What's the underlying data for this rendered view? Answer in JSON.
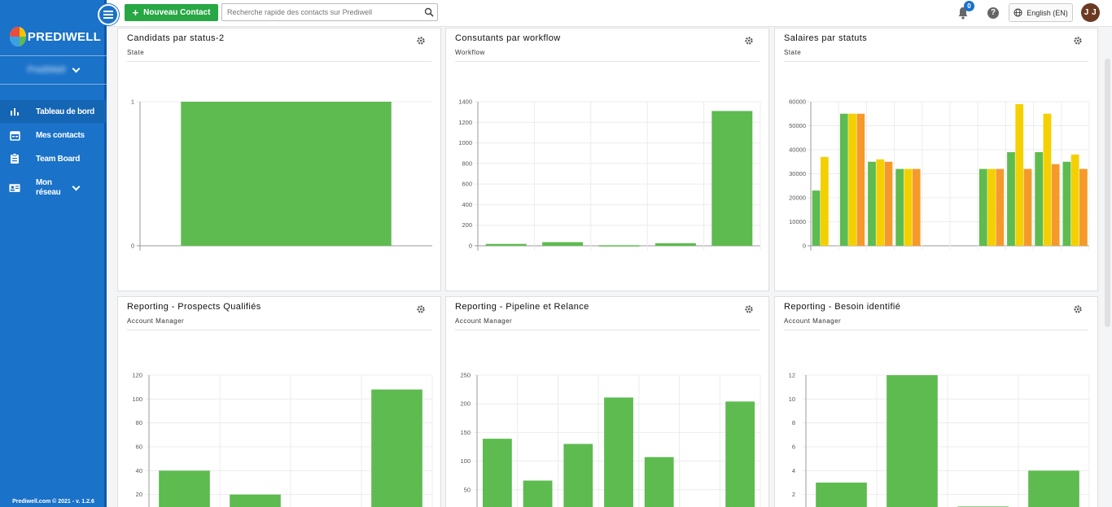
{
  "app": {
    "logo_text": "PREDIWELL",
    "footer": "Prediwell.com © 2021 - v. 1.2.6"
  },
  "sidebar": {
    "user_name": "PrediWell",
    "items": [
      {
        "label": "Tableau de bord",
        "icon": "bar-chart-icon",
        "active": true
      },
      {
        "label": "Mes contacts",
        "icon": "calendar-icon",
        "active": false
      },
      {
        "label": "Team Board",
        "icon": "clipboard-icon",
        "active": false
      },
      {
        "label": "Mon réseau",
        "icon": "contact-card-icon",
        "active": false
      }
    ]
  },
  "topbar": {
    "new_contact_label": "Nouveau Contact",
    "search_placeholder": "Recherche rapide des contacts sur Prediwell",
    "notification_count": "0",
    "help_label": "?",
    "language": "English (EN)",
    "avatar_initials": "J J"
  },
  "colors": {
    "sidebar": "#1a72c9",
    "bar_green": "#5dbb4f",
    "bar_yellow": "#f5d000",
    "bar_orange": "#f59a2a",
    "button_green": "#28a745"
  },
  "cards": [
    {
      "title": "Candidats par status-2",
      "subtitle": "State",
      "chart_data": {
        "type": "bar",
        "y_ticks": [
          "0",
          "1"
        ],
        "ylim": [
          0,
          1
        ],
        "values": [
          1
        ]
      }
    },
    {
      "title": "Consutants par workflow",
      "subtitle": "Workflow",
      "chart_data": {
        "type": "bar",
        "y_ticks": [
          "0",
          "200",
          "400",
          "600",
          "800",
          "1000",
          "1200",
          "1400"
        ],
        "ylim": [
          0,
          1400
        ],
        "values": [
          18,
          35,
          5,
          25,
          1310
        ]
      }
    },
    {
      "title": "Salaires par statuts",
      "subtitle": "State",
      "chart_data": {
        "type": "bar",
        "y_ticks": [
          "0",
          "10000",
          "20000",
          "30000",
          "40000",
          "50000",
          "60000"
        ],
        "ylim": [
          0,
          60000
        ],
        "series": [
          {
            "color": "#5dbb4f",
            "values": [
              23000,
              55000,
              35000,
              32000,
              null,
              null,
              32000,
              39000,
              39000,
              35000
            ]
          },
          {
            "color": "#f5d000",
            "values": [
              37000,
              55000,
              36000,
              32000,
              null,
              null,
              32000,
              59000,
              55000,
              38000
            ]
          },
          {
            "color": "#f59a2a",
            "values": [
              null,
              55000,
              35000,
              32000,
              null,
              null,
              32000,
              32000,
              34000,
              32000
            ]
          }
        ]
      }
    },
    {
      "title": "Reporting - Prospects Qualifiés",
      "subtitle": "Account Manager",
      "chart_data": {
        "type": "bar",
        "y_ticks": [
          "20",
          "40",
          "60",
          "80",
          "100",
          "120"
        ],
        "ylim": [
          0,
          120
        ],
        "values": [
          40,
          20,
          0,
          108
        ]
      }
    },
    {
      "title": "Reporting - Pipeline et Relance",
      "subtitle": "Account Manager",
      "chart_data": {
        "type": "bar",
        "y_ticks": [
          "50",
          "100",
          "150",
          "200",
          "250"
        ],
        "ylim": [
          0,
          250
        ],
        "values": [
          139,
          66,
          130,
          211,
          107,
          0,
          204
        ]
      }
    },
    {
      "title": "Reporting - Besoin identifié",
      "subtitle": "Account Manager",
      "chart_data": {
        "type": "bar",
        "y_ticks": [
          "2",
          "4",
          "6",
          "8",
          "10",
          "12"
        ],
        "ylim": [
          0,
          12
        ],
        "values": [
          3,
          12,
          1,
          4
        ]
      }
    }
  ]
}
